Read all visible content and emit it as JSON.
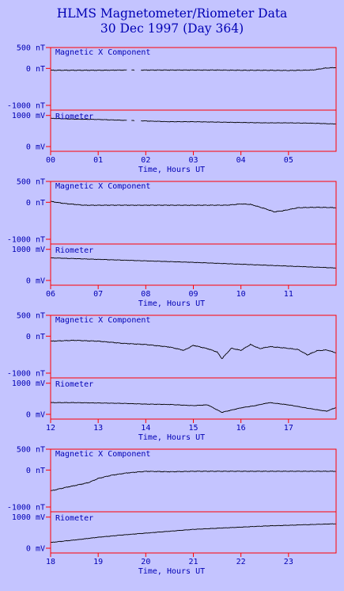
{
  "header": {
    "title_line1": "HLMS Magnetometer/Riometer Data",
    "title_line2": "30 Dec 1997 (Day 364)"
  },
  "colors": {
    "background": "#c4c4ff",
    "frame": "#ff0000",
    "text": "#0000b4",
    "trace": "#000000"
  },
  "chart_data": [
    {
      "type": "line",
      "block": 1,
      "xlabel": "Time, Hours UT",
      "xlim": [
        0,
        6
      ],
      "xticks": [
        "00",
        "01",
        "02",
        "03",
        "04",
        "05"
      ],
      "mag": {
        "label": "Magnetic X Component",
        "ylim": [
          -1000,
          500
        ],
        "yticks": [
          "500 nT",
          "0 nT",
          "-1000 nT"
        ],
        "x": [
          0,
          0.5,
          1,
          1.5,
          2,
          2.5,
          3,
          3.5,
          4,
          4.5,
          5,
          5.5,
          5.8,
          6
        ],
        "values": [
          -45,
          -45,
          -45,
          -40,
          -40,
          -40,
          -40,
          -40,
          -45,
          -45,
          -50,
          -40,
          10,
          20
        ],
        "gaps": [
          [
            1.62,
            1.7
          ],
          [
            1.78,
            1.9
          ]
        ]
      },
      "rio": {
        "label": "Riometer",
        "ylim": [
          0,
          1100
        ],
        "yticks": [
          "1000 mV",
          "0 mV"
        ],
        "x": [
          0,
          0.5,
          1,
          1.5,
          2,
          2.5,
          3,
          3.5,
          4,
          4.5,
          5,
          5.5,
          6
        ],
        "values": [
          880,
          860,
          850,
          830,
          810,
          790,
          790,
          780,
          770,
          760,
          760,
          750,
          730
        ],
        "gaps": [
          [
            1.62,
            1.7
          ],
          [
            1.78,
            1.9
          ]
        ]
      }
    },
    {
      "type": "line",
      "block": 2,
      "xlabel": "Time, Hours UT",
      "xlim": [
        6,
        12
      ],
      "xticks": [
        "06",
        "07",
        "08",
        "09",
        "10",
        "11"
      ],
      "mag": {
        "label": "Magnetic X Component",
        "ylim": [
          -1000,
          500
        ],
        "yticks": [
          "500 nT",
          "0 nT",
          "-1000 nT"
        ],
        "x": [
          6,
          6.3,
          6.7,
          7,
          8,
          9,
          9.7,
          10.0,
          10.2,
          10.5,
          10.7,
          10.9,
          11.2,
          11.6,
          12
        ],
        "values": [
          20,
          -30,
          -70,
          -70,
          -70,
          -70,
          -70,
          -40,
          -50,
          -150,
          -230,
          -200,
          -130,
          -120,
          -130
        ],
        "gaps": []
      },
      "rio": {
        "label": "Riometer",
        "ylim": [
          0,
          1100
        ],
        "yticks": [
          "1000 mV",
          "0 mV"
        ],
        "x": [
          6,
          7,
          8,
          9,
          10,
          11,
          12
        ],
        "values": [
          730,
          690,
          650,
          610,
          560,
          510,
          460
        ],
        "gaps": []
      }
    },
    {
      "type": "line",
      "block": 3,
      "xlabel": "Time, Hours UT",
      "xlim": [
        12,
        18
      ],
      "xticks": [
        "12",
        "13",
        "14",
        "15",
        "16",
        "17"
      ],
      "mag": {
        "label": "Magnetic X Component",
        "ylim": [
          -1000,
          500
        ],
        "yticks": [
          "500 nT",
          "0 nT",
          "-1000 nT"
        ],
        "x": [
          12,
          12.5,
          13,
          13.5,
          14,
          14.5,
          14.8,
          15.0,
          15.3,
          15.5,
          15.6,
          15.8,
          16.0,
          16.2,
          16.4,
          16.6,
          16.9,
          17.2,
          17.4,
          17.6,
          17.8,
          18
        ],
        "values": [
          -120,
          -100,
          -120,
          -170,
          -200,
          -260,
          -340,
          -220,
          -300,
          -380,
          -540,
          -290,
          -340,
          -200,
          -300,
          -250,
          -280,
          -320,
          -450,
          -350,
          -330,
          -400
        ],
        "gaps": []
      },
      "rio": {
        "label": "Riometer",
        "ylim": [
          0,
          1100
        ],
        "yticks": [
          "1000 mV",
          "0 mV"
        ],
        "x": [
          12,
          12.5,
          13,
          13.5,
          14,
          14.5,
          15,
          15.3,
          15.6,
          15.8,
          16.0,
          16.3,
          16.6,
          17.0,
          17.4,
          17.8,
          18
        ],
        "values": [
          440,
          440,
          430,
          420,
          400,
          390,
          360,
          380,
          180,
          240,
          300,
          360,
          440,
          380,
          290,
          210,
          310
        ],
        "gaps": []
      }
    },
    {
      "type": "line",
      "block": 4,
      "xlabel": "Time, Hours UT",
      "xlim": [
        18,
        24
      ],
      "xticks": [
        "18",
        "19",
        "20",
        "21",
        "22",
        "23"
      ],
      "mag": {
        "label": "Magnetic X Component",
        "ylim": [
          -1000,
          500
        ],
        "yticks": [
          "500 nT",
          "0 nT",
          "-1000 nT"
        ],
        "x": [
          18,
          18.3,
          18.6,
          18.8,
          19.0,
          19.3,
          19.6,
          20,
          20.5,
          21,
          22,
          23,
          24
        ],
        "values": [
          -500,
          -420,
          -350,
          -300,
          -200,
          -120,
          -70,
          -30,
          -40,
          -30,
          -30,
          -30,
          -30
        ],
        "gaps": []
      },
      "rio": {
        "label": "Riometer",
        "ylim": [
          0,
          1100
        ],
        "yticks": [
          "1000 mV",
          "0 mV"
        ],
        "x": [
          18,
          18.3,
          18.6,
          19,
          19.5,
          20,
          20.5,
          21,
          21.5,
          22,
          22.5,
          23,
          23.5,
          24
        ],
        "values": [
          280,
          320,
          360,
          420,
          480,
          530,
          580,
          630,
          660,
          690,
          720,
          740,
          760,
          780
        ],
        "gaps": []
      }
    }
  ]
}
